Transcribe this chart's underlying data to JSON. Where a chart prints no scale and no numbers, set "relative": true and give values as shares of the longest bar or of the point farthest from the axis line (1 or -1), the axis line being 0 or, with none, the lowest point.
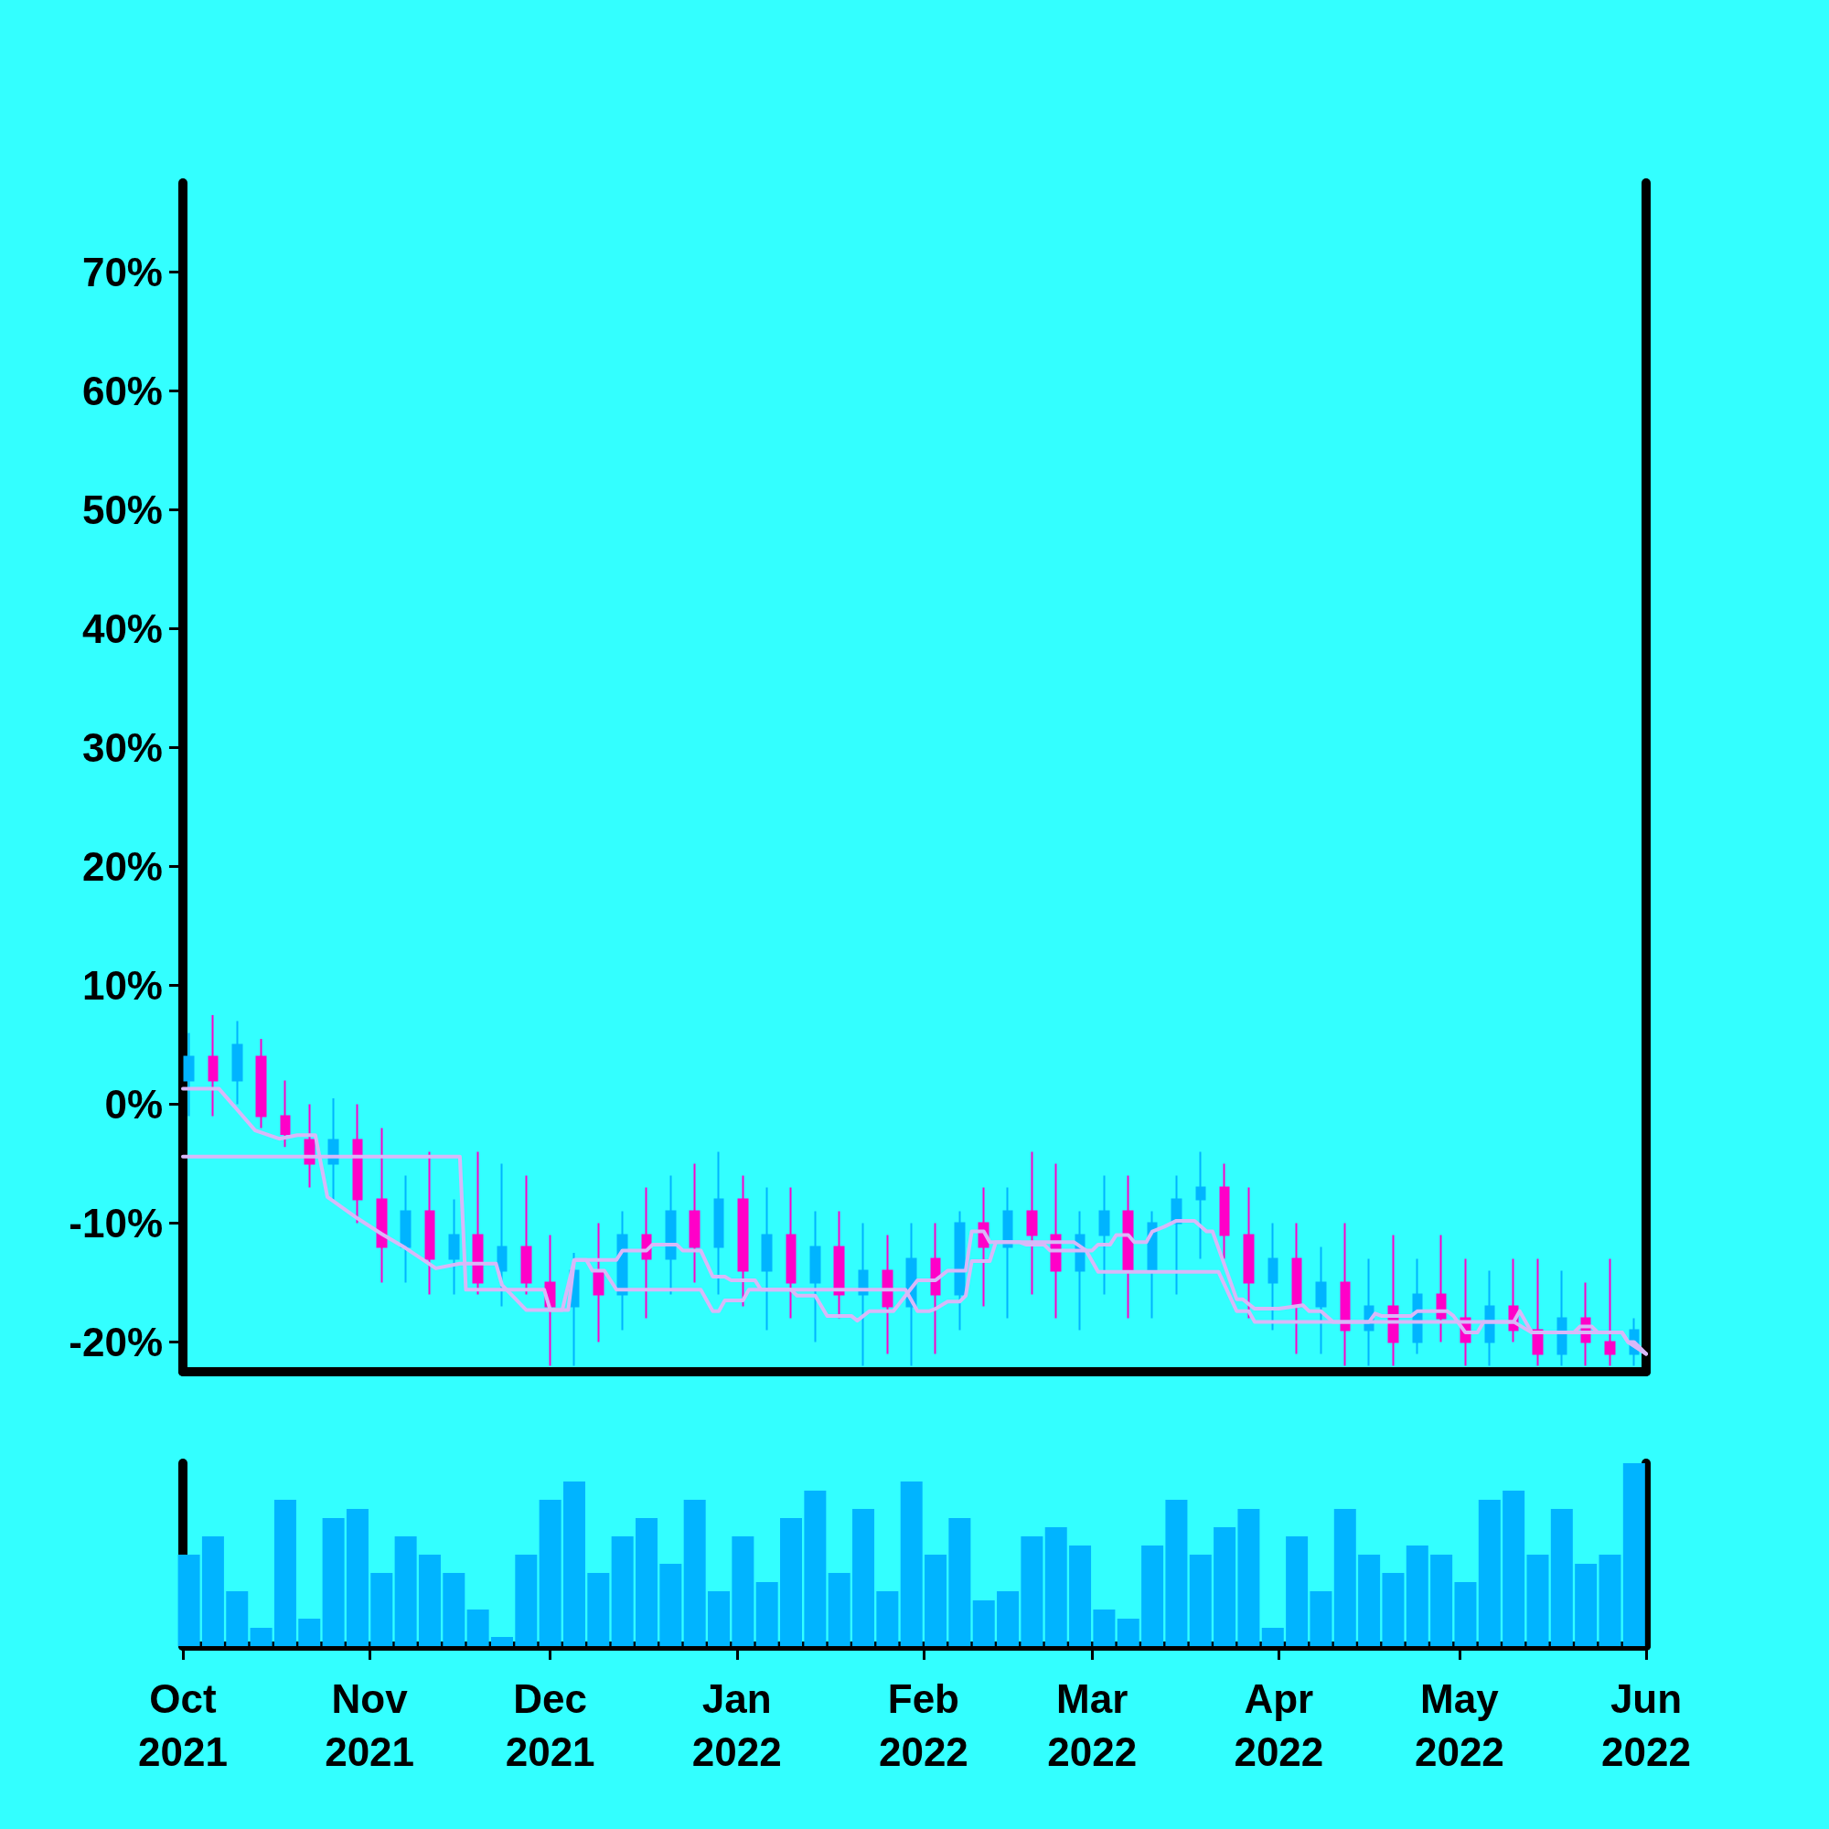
{
  "chart_data": [
    {
      "type": "candlestick",
      "xlim": [
        "2021-10-01",
        "2022-06-01"
      ],
      "ylim": [
        -22.5,
        77.5
      ],
      "tick_labels": "y",
      "marker": "none",
      "yticks": [
        {
          "value": -20,
          "label": "-20%"
        },
        {
          "value": -10,
          "label": "-10%"
        },
        {
          "value": 0,
          "label": "0%"
        },
        {
          "value": 10,
          "label": "10%"
        },
        {
          "value": 20,
          "label": "20%"
        },
        {
          "value": 30,
          "label": "30%"
        },
        {
          "value": 40,
          "label": "40%"
        },
        {
          "value": 50,
          "label": "50%"
        },
        {
          "value": 60,
          "label": "60%"
        },
        {
          "value": 70,
          "label": "70%"
        }
      ],
      "x": [
        "2021-10-02",
        "2021-10-06",
        "2021-10-10",
        "2021-10-14",
        "2021-10-18",
        "2021-10-22",
        "2021-10-26",
        "2021-10-30",
        "2021-11-03",
        "2021-11-07",
        "2021-11-11",
        "2021-11-15",
        "2021-11-19",
        "2021-11-23",
        "2021-11-27",
        "2021-12-01",
        "2021-12-05",
        "2021-12-09",
        "2021-12-13",
        "2021-12-17",
        "2021-12-21",
        "2021-12-25",
        "2021-12-29",
        "2022-01-02",
        "2022-01-06",
        "2022-01-10",
        "2022-01-14",
        "2022-01-18",
        "2022-01-22",
        "2022-01-26",
        "2022-01-30",
        "2022-02-03",
        "2022-02-07",
        "2022-02-11",
        "2022-02-15",
        "2022-02-19",
        "2022-02-23",
        "2022-02-27",
        "2022-03-03",
        "2022-03-07",
        "2022-03-11",
        "2022-03-15",
        "2022-03-19",
        "2022-03-23",
        "2022-03-27",
        "2022-03-31",
        "2022-04-04",
        "2022-04-08",
        "2022-04-12",
        "2022-04-16",
        "2022-04-20",
        "2022-04-24",
        "2022-04-28",
        "2022-05-02",
        "2022-05-06",
        "2022-05-10",
        "2022-05-14",
        "2022-05-18",
        "2022-05-22",
        "2022-05-26",
        "2022-05-30"
      ],
      "ohlc": [
        [
          2,
          6,
          -1,
          4
        ],
        [
          4,
          7.5,
          -1,
          2
        ],
        [
          2,
          7,
          0,
          5
        ],
        [
          4,
          5.5,
          -2,
          -1
        ],
        [
          -1,
          2,
          -3.6,
          -2.5
        ],
        [
          -3,
          0,
          -7,
          -5
        ],
        [
          -5,
          0.5,
          -8,
          -3
        ],
        [
          -3,
          0,
          -10,
          -8
        ],
        [
          -8,
          -2,
          -15,
          -12
        ],
        [
          -12,
          -6,
          -15,
          -9
        ],
        [
          -9,
          -4,
          -16,
          -13
        ],
        [
          -13,
          -8,
          -16,
          -11
        ],
        [
          -11,
          -4,
          -16,
          -15
        ],
        [
          -14,
          -5,
          -17,
          -12
        ],
        [
          -12,
          -6,
          -16,
          -15
        ],
        [
          -15,
          -11,
          -22,
          -17
        ],
        [
          -17,
          -12.5,
          -22,
          -14
        ],
        [
          -14,
          -10,
          -20,
          -16
        ],
        [
          -16,
          -9,
          -19,
          -11
        ],
        [
          -11,
          -7,
          -18,
          -13
        ],
        [
          -13,
          -6,
          -16,
          -9
        ],
        [
          -9,
          -5,
          -15,
          -12
        ],
        [
          -12,
          -4,
          -16,
          -8
        ],
        [
          -8,
          -6,
          -17,
          -14
        ],
        [
          -14,
          -7,
          -19,
          -11
        ],
        [
          -11,
          -7,
          -18,
          -15
        ],
        [
          -15,
          -9,
          -20,
          -12
        ],
        [
          -12,
          -9,
          -18,
          -16
        ],
        [
          -16,
          -10,
          -22,
          -14
        ],
        [
          -14,
          -11,
          -21,
          -17
        ],
        [
          -17,
          -10,
          -22,
          -13
        ],
        [
          -13,
          -10,
          -21,
          -16
        ],
        [
          -16,
          -9,
          -19,
          -10
        ],
        [
          -10,
          -7,
          -17,
          -12
        ],
        [
          -12,
          -7,
          -18,
          -9
        ],
        [
          -9,
          -4,
          -16,
          -11
        ],
        [
          -11,
          -5,
          -18,
          -14
        ],
        [
          -14,
          -9,
          -19,
          -11
        ],
        [
          -11,
          -6,
          -16,
          -9
        ],
        [
          -9,
          -6,
          -18,
          -14
        ],
        [
          -14,
          -9,
          -18,
          -10
        ],
        [
          -10,
          -6,
          -16,
          -8
        ],
        [
          -8,
          -4,
          -13,
          -7
        ],
        [
          -7,
          -5,
          -13,
          -11
        ],
        [
          -11,
          -7,
          -18,
          -15
        ],
        [
          -15,
          -10,
          -19,
          -13
        ],
        [
          -13,
          -10,
          -21,
          -17
        ],
        [
          -17,
          -12,
          -21,
          -15
        ],
        [
          -15,
          -10,
          -22,
          -19
        ],
        [
          -19,
          -13,
          -22,
          -17
        ],
        [
          -17,
          -11,
          -22,
          -20
        ],
        [
          -20,
          -13,
          -21,
          -16
        ],
        [
          -16,
          -11,
          -20,
          -18
        ],
        [
          -18,
          -13,
          -22,
          -20
        ],
        [
          -20,
          -14,
          -22,
          -17
        ],
        [
          -17,
          -13,
          -20,
          -19
        ],
        [
          -19,
          -13,
          -22,
          -21
        ],
        [
          -21,
          -14,
          -22,
          -18
        ],
        [
          -18,
          -15,
          -22,
          -20
        ],
        [
          -20,
          -13,
          -22,
          -21
        ],
        [
          -21,
          -18,
          -22,
          -19
        ]
      ],
      "colors": [
        "#00b4ff",
        "#ff00c8",
        "#00b4ff",
        "#ff00c8",
        "#ff00c8",
        "#ff00c8",
        "#00b4ff",
        "#ff00c8",
        "#ff00c8",
        "#00b4ff",
        "#ff00c8",
        "#00b4ff",
        "#ff00c8",
        "#00b4ff",
        "#ff00c8",
        "#ff00c8",
        "#00b4ff",
        "#ff00c8",
        "#00b4ff",
        "#ff00c8",
        "#00b4ff",
        "#ff00c8",
        "#00b4ff",
        "#ff00c8",
        "#00b4ff",
        "#ff00c8",
        "#00b4ff",
        "#ff00c8",
        "#00b4ff",
        "#ff00c8",
        "#00b4ff",
        "#ff00c8",
        "#00b4ff",
        "#ff00c8",
        "#00b4ff",
        "#ff00c8",
        "#ff00c8",
        "#00b4ff",
        "#00b4ff",
        "#ff00c8",
        "#00b4ff",
        "#00b4ff",
        "#00b4ff",
        "#ff00c8",
        "#ff00c8",
        "#00b4ff",
        "#ff00c8",
        "#00b4ff",
        "#ff00c8",
        "#00b4ff",
        "#ff00c8",
        "#00b4ff",
        "#ff00c8",
        "#ff00c8",
        "#00b4ff",
        "#ff00c8",
        "#ff00c8",
        "#00b4ff",
        "#ff00c8",
        "#ff00c8",
        "#00b4ff"
      ],
      "series": [
        {
          "type": "line",
          "color": "#d8b8f8",
          "x": [
            "2021-10-01",
            "2021-10-07",
            "2021-10-13",
            "2021-10-17",
            "2021-10-20",
            "2021-10-23",
            "2021-10-25",
            "2021-10-30",
            "2021-11-03",
            "2021-11-07",
            "2021-11-12",
            "2021-11-16",
            "2021-11-22",
            "2021-11-23",
            "2021-11-27",
            "2021-12-03",
            "2021-12-05",
            "2021-12-12",
            "2021-12-13",
            "2021-12-17",
            "2021-12-18",
            "2021-12-22",
            "2021-12-23",
            "2021-12-26",
            "2021-12-28",
            "2021-12-30",
            "2021-12-31",
            "2022-01-04",
            "2022-01-05",
            "2022-01-10",
            "2022-01-11",
            "2022-01-14",
            "2022-01-16",
            "2022-01-20",
            "2022-01-21",
            "2022-01-23",
            "2022-01-27",
            "2022-01-31",
            "2022-02-03",
            "2022-02-05",
            "2022-02-08",
            "2022-02-09",
            "2022-02-11",
            "2022-02-12",
            "2022-02-26",
            "2022-02-28",
            "2022-03-01",
            "2022-03-02",
            "2022-03-04",
            "2022-03-05",
            "2022-03-07",
            "2022-03-08",
            "2022-03-10",
            "2022-03-11",
            "2022-03-13",
            "2022-03-15",
            "2022-03-18",
            "2022-03-20",
            "2022-03-21",
            "2022-03-25",
            "2022-03-26",
            "2022-03-28",
            "2022-04-01",
            "2022-04-05",
            "2022-04-06",
            "2022-04-08",
            "2022-04-10",
            "2022-04-16",
            "2022-04-17",
            "2022-04-18",
            "2022-04-23",
            "2022-04-24",
            "2022-04-29",
            "2022-04-30",
            "2022-05-02",
            "2022-05-04",
            "2022-05-05",
            "2022-05-10",
            "2022-05-11",
            "2022-05-13",
            "2022-05-20",
            "2022-05-21",
            "2022-05-23",
            "2022-05-24",
            "2022-05-28",
            "2022-05-29",
            "2022-05-30",
            "2022-06-01"
          ],
          "values": [
            1.3,
            1.3,
            -2.2,
            -2.9,
            -2.6,
            -2.6,
            -7.8,
            -9.6,
            -10.9,
            -12.1,
            -13.8,
            -13.4,
            -13.4,
            -15.2,
            -17.3,
            -17.3,
            -13.1,
            -13.1,
            -12.3,
            -12.3,
            -11.8,
            -11.8,
            -12.3,
            -12.3,
            -14.5,
            -14.5,
            -14.8,
            -14.8,
            -15.6,
            -15.6,
            -16.1,
            -16.1,
            -17.8,
            -17.8,
            -18.2,
            -17.4,
            -17.4,
            -14.8,
            -14.8,
            -14,
            -14,
            -10.7,
            -10.7,
            -11.6,
            -11.6,
            -12.3,
            -12.3,
            -11.8,
            -11.8,
            -11,
            -11,
            -11.6,
            -11.6,
            -10.7,
            -10.3,
            -9.8,
            -9.8,
            -10.7,
            -10.7,
            -16.4,
            -16.4,
            -17.2,
            -17.2,
            -16.9,
            -17.4,
            -17.4,
            -18.3,
            -18.3,
            -17.6,
            -17.8,
            -17.8,
            -17.4,
            -17.4,
            -17.8,
            -19.2,
            -19.2,
            -18.3,
            -18.3,
            -17.4,
            -19.2,
            -19.2,
            -18.7,
            -18.7,
            -19.2,
            -19.2,
            -20,
            -20,
            -21
          ]
        },
        {
          "type": "line",
          "color": "#d8b8f8",
          "x": [
            "2021-10-01",
            "2021-11-16",
            "2021-11-17",
            "2021-11-30",
            "2021-12-01",
            "2021-12-04",
            "2021-12-05",
            "2021-12-07",
            "2021-12-08",
            "2021-12-10",
            "2021-12-12",
            "2021-12-26",
            "2021-12-28",
            "2021-12-29",
            "2021-12-30",
            "2022-01-02",
            "2022-01-03",
            "2022-01-29",
            "2022-01-31",
            "2022-02-02",
            "2022-02-03",
            "2022-02-05",
            "2022-02-07",
            "2022-02-08",
            "2022-02-09",
            "2022-02-12",
            "2022-02-13",
            "2022-02-17",
            "2022-02-18",
            "2022-02-21",
            "2022-02-22",
            "2022-02-28",
            "2022-03-02",
            "2022-03-22",
            "2022-03-25",
            "2022-03-27",
            "2022-03-28",
            "2022-05-10",
            "2022-05-13",
            "2022-05-28",
            "2022-05-29",
            "2022-06-01"
          ],
          "values": [
            -4.4,
            -4.4,
            -15.6,
            -15.6,
            -17.3,
            -17.3,
            -13.1,
            -13.1,
            -14,
            -14,
            -15.6,
            -15.6,
            -17.4,
            -17.4,
            -16.5,
            -16.5,
            -15.6,
            -15.6,
            -17.4,
            -17.4,
            -17.2,
            -16.6,
            -16.6,
            -16.1,
            -13.2,
            -13.2,
            -11.6,
            -11.6,
            -11.8,
            -11.8,
            -12.3,
            -12.3,
            -14.1,
            -14.1,
            -17.4,
            -17.4,
            -18.3,
            -18.3,
            -19.2,
            -19.2,
            -20,
            -21
          ]
        }
      ]
    },
    {
      "type": "bar",
      "relative": true,
      "color": "#00b4ff",
      "xlim": [
        "2021-10-01",
        "2022-06-01"
      ],
      "xticks": [
        {
          "value": "2021-10-01",
          "label": "Oct\n2021"
        },
        {
          "value": "2021-11-01",
          "label": "Nov\n2021"
        },
        {
          "value": "2021-12-01",
          "label": "Dec\n2021"
        },
        {
          "value": "2022-01-01",
          "label": "Jan\n2022"
        },
        {
          "value": "2022-02-01",
          "label": "Feb\n2022"
        },
        {
          "value": "2022-03-01",
          "label": "Mar\n2022"
        },
        {
          "value": "2022-04-01",
          "label": "Apr\n2022"
        },
        {
          "value": "2022-05-01",
          "label": "May\n2022"
        },
        {
          "value": "2022-06-01",
          "label": "Jun\n2022"
        }
      ],
      "x": [
        "2021-10-02",
        "2021-10-06",
        "2021-10-10",
        "2021-10-14",
        "2021-10-18",
        "2021-10-22",
        "2021-10-26",
        "2021-10-30",
        "2021-11-03",
        "2021-11-07",
        "2021-11-11",
        "2021-11-15",
        "2021-11-19",
        "2021-11-23",
        "2021-11-27",
        "2021-12-01",
        "2021-12-05",
        "2021-12-09",
        "2021-12-13",
        "2021-12-17",
        "2021-12-21",
        "2021-12-25",
        "2021-12-29",
        "2022-01-02",
        "2022-01-06",
        "2022-01-10",
        "2022-01-14",
        "2022-01-18",
        "2022-01-22",
        "2022-01-26",
        "2022-01-30",
        "2022-02-03",
        "2022-02-07",
        "2022-02-11",
        "2022-02-15",
        "2022-02-19",
        "2022-02-23",
        "2022-02-27",
        "2022-03-03",
        "2022-03-07",
        "2022-03-11",
        "2022-03-15",
        "2022-03-19",
        "2022-03-23",
        "2022-03-27",
        "2022-03-31",
        "2022-04-04",
        "2022-04-08",
        "2022-04-12",
        "2022-04-16",
        "2022-04-20",
        "2022-04-24",
        "2022-04-28",
        "2022-05-02",
        "2022-05-06",
        "2022-05-10",
        "2022-05-14",
        "2022-05-18",
        "2022-05-22",
        "2022-05-26",
        "2022-05-30"
      ],
      "values": [
        0.5,
        0.6,
        0.3,
        0.1,
        0.8,
        0.15,
        0.7,
        0.75,
        0.4,
        0.6,
        0.5,
        0.4,
        0.2,
        0.05,
        0.5,
        0.8,
        0.9,
        0.4,
        0.6,
        0.7,
        0.45,
        0.8,
        0.3,
        0.6,
        0.35,
        0.7,
        0.85,
        0.4,
        0.75,
        0.3,
        0.9,
        0.5,
        0.7,
        0.25,
        0.3,
        0.6,
        0.65,
        0.55,
        0.2,
        0.15,
        0.55,
        0.8,
        0.5,
        0.65,
        0.75,
        0.1,
        0.6,
        0.3,
        0.75,
        0.5,
        0.4,
        0.55,
        0.5,
        0.35,
        0.8,
        0.85,
        0.5,
        0.75,
        0.45,
        0.5,
        1
      ]
    }
  ]
}
